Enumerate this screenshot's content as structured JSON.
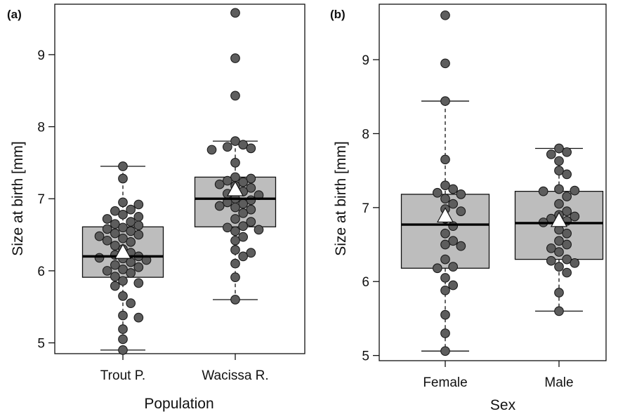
{
  "chart_data": [
    {
      "type": "box",
      "panel_label": "(a)",
      "xlabel": "Population",
      "ylabel": "Size at birth [mm]",
      "ylim": [
        4.85,
        9.7
      ],
      "yticks": [
        5,
        6,
        7,
        8,
        9
      ],
      "categories": [
        "Trout P.",
        "Wacissa R."
      ],
      "boxes": [
        {
          "category": "Trout P.",
          "whisker_low": 4.9,
          "q1": 5.91,
          "median": 6.2,
          "q3": 6.61,
          "whisker_high": 7.45,
          "mean": 6.25,
          "points": [
            7.45,
            7.28,
            6.95,
            6.92,
            6.85,
            6.83,
            6.78,
            6.75,
            6.72,
            6.68,
            6.65,
            6.63,
            6.6,
            6.58,
            6.55,
            6.52,
            6.5,
            6.48,
            6.45,
            6.42,
            6.4,
            6.35,
            6.3,
            6.25,
            6.22,
            6.2,
            6.18,
            6.17,
            6.15,
            6.12,
            6.08,
            6.05,
            6.02,
            6.0,
            5.97,
            5.92,
            5.86,
            5.83,
            5.79,
            5.65,
            5.55,
            5.38,
            5.35,
            5.19,
            5.05,
            4.9
          ]
        },
        {
          "category": "Wacissa R.",
          "whisker_low": 5.6,
          "q1": 6.61,
          "median": 7.0,
          "q3": 7.3,
          "whisker_high": 7.8,
          "mean": 7.12,
          "points": [
            9.58,
            8.95,
            8.43,
            7.8,
            7.75,
            7.72,
            7.7,
            7.68,
            7.5,
            7.3,
            7.28,
            7.25,
            7.23,
            7.2,
            7.18,
            7.15,
            7.1,
            7.07,
            7.05,
            7.0,
            6.98,
            6.95,
            6.93,
            6.9,
            6.88,
            6.85,
            6.8,
            6.72,
            6.68,
            6.62,
            6.6,
            6.57,
            6.55,
            6.47,
            6.42,
            6.29,
            6.25,
            6.2,
            6.1,
            5.91,
            5.6
          ]
        }
      ]
    },
    {
      "type": "box",
      "panel_label": "(b)",
      "xlabel": "Sex",
      "ylabel": "Size at birth [mm]",
      "ylim": [
        4.93,
        9.75
      ],
      "yticks": [
        5,
        6,
        7,
        8,
        9
      ],
      "categories": [
        "Female",
        "Male"
      ],
      "boxes": [
        {
          "category": "Female",
          "whisker_low": 5.06,
          "q1": 6.18,
          "median": 6.77,
          "q3": 7.18,
          "whisker_high": 8.44,
          "mean": 6.88,
          "points": [
            9.6,
            8.95,
            8.44,
            7.65,
            7.3,
            7.25,
            7.2,
            7.18,
            7.12,
            7.05,
            6.98,
            6.95,
            6.85,
            6.75,
            6.65,
            6.55,
            6.5,
            6.48,
            6.3,
            6.2,
            6.18,
            6.05,
            5.95,
            5.88,
            5.55,
            5.3,
            5.06
          ]
        },
        {
          "category": "Male",
          "whisker_low": 5.6,
          "q1": 6.3,
          "median": 6.79,
          "q3": 7.22,
          "whisker_high": 7.8,
          "mean": 6.82,
          "points": [
            7.8,
            7.75,
            7.72,
            7.63,
            7.5,
            7.45,
            7.25,
            7.23,
            7.22,
            7.15,
            7.05,
            6.95,
            6.9,
            6.88,
            6.85,
            6.82,
            6.8,
            6.7,
            6.65,
            6.55,
            6.5,
            6.45,
            6.4,
            6.3,
            6.28,
            6.25,
            6.2,
            6.12,
            5.85,
            5.6
          ]
        }
      ]
    }
  ]
}
